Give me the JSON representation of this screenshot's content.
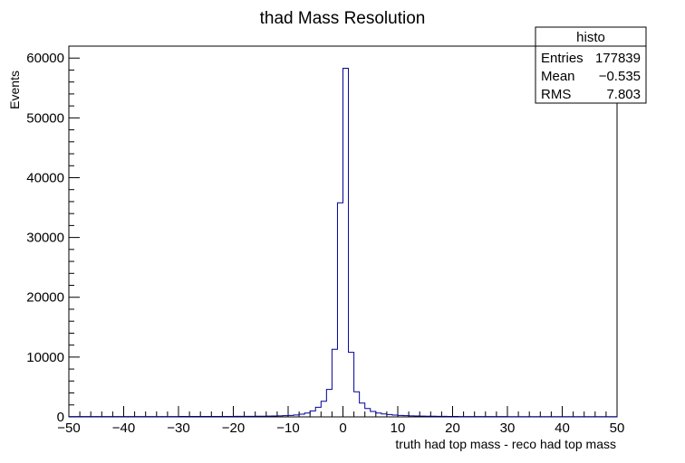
{
  "chart_data": {
    "type": "histogram",
    "title": "thad Mass Resolution",
    "xlabel": "truth had top mass - reco had top mass",
    "ylabel": "Events",
    "xlim": [
      -50,
      50
    ],
    "ylim": [
      0,
      62000
    ],
    "x_ticks": [
      -50,
      -40,
      -30,
      -20,
      -10,
      0,
      10,
      20,
      30,
      40,
      50
    ],
    "x_tick_labels": [
      "−50",
      "−40",
      "−30",
      "−20",
      "−10",
      "0",
      "10",
      "20",
      "30",
      "40",
      "50"
    ],
    "y_ticks": [
      0,
      10000,
      20000,
      30000,
      40000,
      50000,
      60000
    ],
    "y_tick_labels": [
      "0",
      "10000",
      "20000",
      "30000",
      "40000",
      "50000",
      "60000"
    ],
    "bin_width": 1,
    "bin_low_edges": [
      -50,
      -49,
      -48,
      -47,
      -46,
      -45,
      -44,
      -43,
      -42,
      -41,
      -40,
      -39,
      -38,
      -37,
      -36,
      -35,
      -34,
      -33,
      -32,
      -31,
      -30,
      -29,
      -28,
      -27,
      -26,
      -25,
      -24,
      -23,
      -22,
      -21,
      -20,
      -19,
      -18,
      -17,
      -16,
      -15,
      -14,
      -13,
      -12,
      -11,
      -10,
      -9,
      -8,
      -7,
      -6,
      -5,
      -4,
      -3,
      -2,
      -1,
      0,
      1,
      2,
      3,
      4,
      5,
      6,
      7,
      8,
      9,
      10,
      11,
      12,
      13,
      14,
      15,
      16,
      17,
      18,
      19,
      20,
      21,
      22,
      23,
      24,
      25,
      26,
      27,
      28,
      29,
      30,
      31,
      32,
      33,
      34,
      35,
      36,
      37,
      38,
      39,
      40,
      41,
      42,
      43,
      44,
      45,
      46,
      47,
      48,
      49
    ],
    "values": [
      60,
      60,
      60,
      60,
      60,
      60,
      60,
      60,
      60,
      60,
      60,
      60,
      60,
      60,
      60,
      60,
      60,
      60,
      60,
      60,
      80,
      80,
      80,
      80,
      80,
      80,
      80,
      80,
      80,
      80,
      90,
      90,
      100,
      100,
      110,
      120,
      130,
      150,
      170,
      200,
      250,
      330,
      450,
      650,
      1000,
      1600,
      2600,
      4600,
      11300,
      35800,
      58300,
      10800,
      4200,
      2300,
      1400,
      900,
      650,
      500,
      400,
      300,
      250,
      200,
      170,
      150,
      130,
      120,
      110,
      100,
      90,
      80,
      70,
      65,
      60,
      60,
      55,
      55,
      50,
      50,
      50,
      50,
      45,
      45,
      45,
      45,
      40,
      40,
      40,
      40,
      40,
      40,
      35,
      35,
      35,
      35,
      35,
      30,
      30,
      30,
      30,
      30
    ],
    "stats_box": {
      "title": "histo",
      "rows": [
        {
          "label": "Entries",
          "value": "177839"
        },
        {
          "label": "Mean",
          "value": "−0.535"
        },
        {
          "label": "RMS",
          "value": "7.803"
        }
      ]
    },
    "line_color": "#000099",
    "grid": false,
    "legend": "top-right"
  }
}
